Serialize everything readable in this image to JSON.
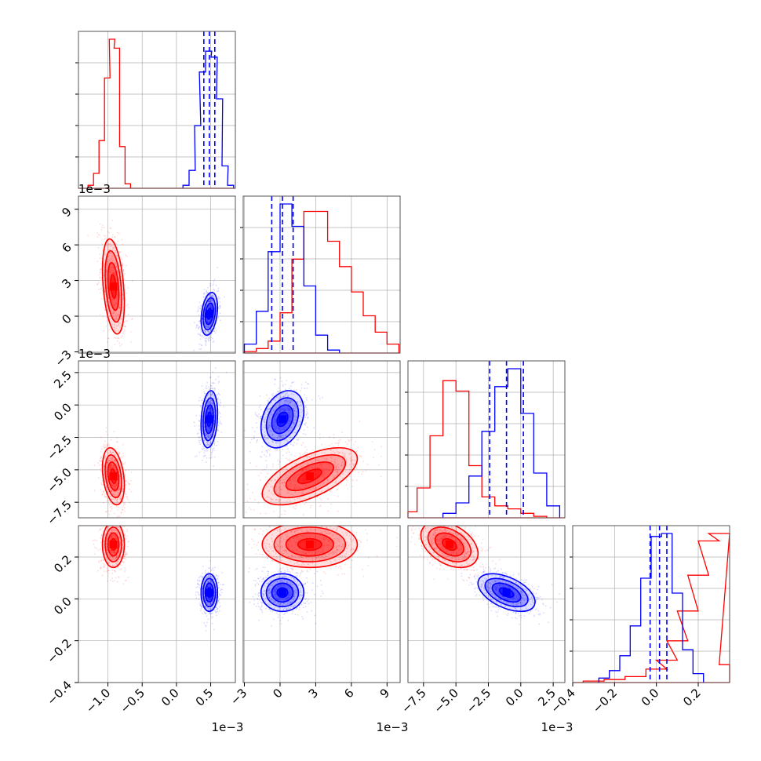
{
  "chart_data": {
    "type": "corner",
    "grid": true,
    "legend": "none",
    "colors": {
      "series_red": "#ff0000",
      "series_blue": "#0000ff",
      "grid": "#b0b0b0",
      "frame": "#555555"
    },
    "series": [
      {
        "color": "#ff0000",
        "mean": [
          -0.00092,
          0.0025,
          -0.0055,
          0.26
        ],
        "sd": [
          8e-05,
          0.002,
          0.0011,
          0.055
        ],
        "rho": [
          [
            0,
            -0.35
          ],
          [
            0,
            -0.3
          ],
          [
            1,
            0.62
          ],
          [
            2,
            -0.4
          ]
        ]
      },
      {
        "color": "#0000ff",
        "mean": [
          0.00048,
          0.0002,
          -0.0011,
          0.03
        ],
        "sd": [
          6e-05,
          0.0009,
          0.0011,
          0.045
        ],
        "rho": [
          [
            0,
            0.3
          ],
          [
            0,
            0.2
          ],
          [
            1,
            0.3
          ],
          [
            2,
            -0.5
          ]
        ]
      }
    ],
    "quantiles_blue": [
      [
        0.0004,
        0.00048,
        0.00056
      ],
      [
        -0.0007,
        0.0002,
        0.0011
      ],
      [
        -0.0024,
        -0.0011,
        0.0002
      ],
      [
        -0.03,
        0.015,
        0.05
      ]
    ],
    "histograms": [
      {
        "param": 0,
        "range": [
          -0.00143,
          0.00086
        ],
        "red": [
          [
            -0.00125,
            2
          ],
          [
            -0.00117,
            10
          ],
          [
            -0.00109,
            32
          ],
          [
            -0.00101,
            74
          ],
          [
            -0.00094,
            100
          ],
          [
            -0.00087,
            94
          ],
          [
            -0.00079,
            28
          ],
          [
            -0.00071,
            3
          ]
        ],
        "blue": [
          [
            0.00014,
            2
          ],
          [
            0.00023,
            12
          ],
          [
            0.00031,
            42
          ],
          [
            0.00038,
            78
          ],
          [
            0.00047,
            92
          ],
          [
            0.00055,
            88
          ],
          [
            0.00063,
            60
          ],
          [
            0.00071,
            15
          ],
          [
            0.00079,
            2
          ]
        ]
      },
      {
        "param": 1,
        "range": [
          -0.0033,
          0.0098
        ],
        "red": [
          [
            -0.0025,
            1
          ],
          [
            -0.0015,
            3
          ],
          [
            -0.0005,
            8
          ],
          [
            0.0005,
            27
          ],
          [
            0.0015,
            63
          ],
          [
            0.0025,
            95
          ],
          [
            0.0035,
            95
          ],
          [
            0.0045,
            75
          ],
          [
            0.0055,
            58
          ],
          [
            0.0065,
            41
          ],
          [
            0.0075,
            25
          ],
          [
            0.0085,
            14
          ],
          [
            0.0095,
            6
          ]
        ],
        "blue": [
          [
            -0.0025,
            6
          ],
          [
            -0.0015,
            28
          ],
          [
            -0.0005,
            68
          ],
          [
            0.0005,
            100
          ],
          [
            0.0015,
            85
          ],
          [
            0.0025,
            45
          ],
          [
            0.0035,
            12
          ],
          [
            0.0045,
            2
          ]
        ]
      },
      {
        "param": 2,
        "range": [
          -0.0097,
          0.0032
        ],
        "red": [
          [
            -0.0085,
            4
          ],
          [
            -0.0075,
            20
          ],
          [
            -0.0065,
            55
          ],
          [
            -0.0055,
            92
          ],
          [
            -0.0045,
            85
          ],
          [
            -0.0035,
            35
          ],
          [
            -0.0025,
            14
          ],
          [
            -0.0015,
            8
          ],
          [
            -0.0005,
            6
          ],
          [
            0.0005,
            3
          ],
          [
            0.0015,
            1
          ]
        ],
        "blue": [
          [
            -0.0055,
            3
          ],
          [
            -0.0045,
            10
          ],
          [
            -0.0035,
            28
          ],
          [
            -0.0025,
            58
          ],
          [
            -0.0015,
            88
          ],
          [
            -0.0005,
            100
          ],
          [
            0.0005,
            70
          ],
          [
            0.0015,
            30
          ],
          [
            0.0025,
            8
          ]
        ]
      },
      {
        "param": 3,
        "range": [
          -0.41,
          0.36
        ],
        "red": [
          [
            -0.3,
            1
          ],
          [
            -0.2,
            2
          ],
          [
            -0.1,
            4
          ],
          [
            0.0,
            9
          ],
          [
            0.05,
            15
          ],
          [
            0.1,
            28
          ],
          [
            0.15,
            48
          ],
          [
            0.2,
            72
          ],
          [
            0.25,
            95
          ],
          [
            0.3,
            100
          ],
          [
            0.35,
            12
          ]
        ],
        "blue": [
          [
            -0.25,
            3
          ],
          [
            -0.2,
            8
          ],
          [
            -0.15,
            18
          ],
          [
            -0.1,
            38
          ],
          [
            -0.05,
            70
          ],
          [
            0.0,
            98
          ],
          [
            0.05,
            100
          ],
          [
            0.1,
            60
          ],
          [
            0.15,
            22
          ],
          [
            0.2,
            6
          ]
        ]
      }
    ],
    "ranges": [
      [
        -0.00143,
        0.00086
      ],
      [
        -0.0031,
        0.0101
      ],
      [
        -0.0087,
        0.0034
      ],
      [
        -0.4,
        0.35
      ]
    ],
    "axis_ticks": [
      {
        "values": [
          -0.001,
          -0.0005,
          0.0,
          0.0005
        ],
        "labels": [
          "−1.0",
          "−0.5",
          "0.0",
          "0.5"
        ],
        "offset": "1e−3"
      },
      {
        "values": [
          -0.003,
          0.0,
          0.003,
          0.006,
          0.009
        ],
        "labels": [
          "−3",
          "0",
          "3",
          "6",
          "9"
        ],
        "offset": "1e−3"
      },
      {
        "values": [
          -0.0075,
          -0.005,
          -0.0025,
          0.0,
          0.0025
        ],
        "labels": [
          "−7.5",
          "−5.0",
          "−2.5",
          "0.0",
          "2.5"
        ],
        "offset": "1e−3"
      },
      {
        "values": [
          -0.4,
          -0.2,
          0.0,
          0.2
        ],
        "labels": [
          "−0.4",
          "−0.2",
          "0.0",
          "0.2"
        ],
        "offset": ""
      }
    ]
  }
}
